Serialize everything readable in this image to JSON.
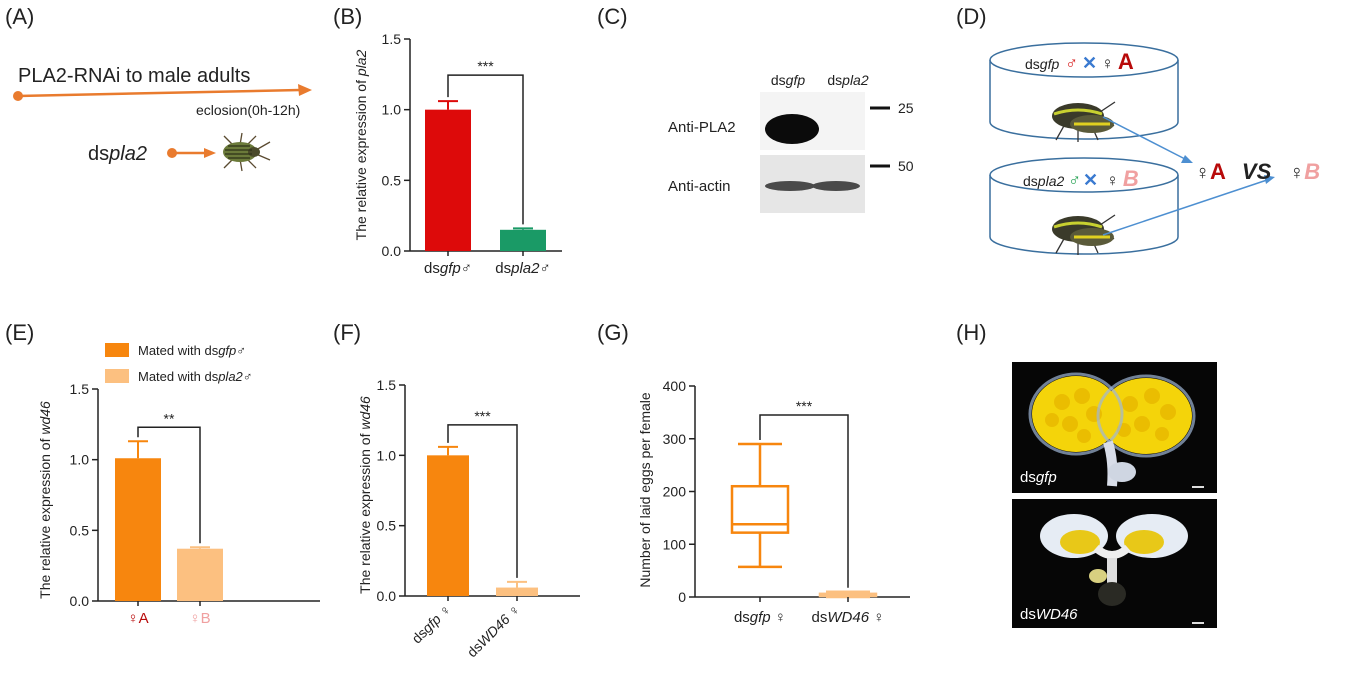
{
  "panels": {
    "A": {
      "label": "(A)",
      "arrow_text": "PLA2-RNAi to male adults",
      "eclosion_text": "eclosion(0h-12h)",
      "ds_prefix": "ds",
      "ds_gene": "pla2"
    },
    "B": {
      "label": "(B)"
    },
    "C": {
      "label": "(C)",
      "lane1_prefix": "ds",
      "lane1_gene": "gfp",
      "lane2_prefix": "ds",
      "lane2_gene": "pla2",
      "row1_label": "Anti-PLA2",
      "row2_label": "Anti-actin",
      "marker1": "25",
      "marker2": "50"
    },
    "D": {
      "label": "(D)",
      "cup1_prefix": "ds",
      "cup1_gene": "gfp",
      "cup1_male": "♂",
      "cup1_cross": "✕",
      "cup1_female": "♀",
      "cup1_letter": "A",
      "cup2_prefix": "ds",
      "cup2_gene": "pla2",
      "cup2_male": "♂",
      "cup2_cross": "✕",
      "cup2_female": "♀",
      "cup2_letter": "B",
      "cmp_female_a": "♀",
      "cmp_letter_a": "A",
      "cmp_vs": "VS",
      "cmp_female_b": "♀",
      "cmp_letter_b": "B"
    },
    "E": {
      "label": "(E)",
      "legend1_prefix": "Mated with ds",
      "legend1_gene": "gfp",
      "legend1_sym": "♂",
      "legend2_prefix": "Mated with ds",
      "legend2_gene": "pla2",
      "legend2_sym": "♂"
    },
    "F": {
      "label": "(F)"
    },
    "G": {
      "label": "(G)"
    },
    "H": {
      "label": "(H)",
      "img1_prefix": "ds",
      "img1_gene": "gfp",
      "img2_prefix": "ds",
      "img2_gene": "WD46"
    }
  },
  "colors": {
    "red": "#dd0a0a",
    "green": "#1a9a66",
    "orange": "#f7860e",
    "light_orange": "#fcc080",
    "dark_red": "#b80a0a",
    "pink": "#f0a0a0",
    "arrow": "#e97b2e",
    "blue_arrow": "#4d8fd1"
  },
  "chart_data": [
    {
      "panel": "B",
      "type": "bar",
      "ylabel_prefix": "The relative expression of ",
      "ylabel_gene": "pla2",
      "ylim": [
        0,
        1.5
      ],
      "yticks": [
        "0.0",
        "0.5",
        "1.0",
        "1.5"
      ],
      "categories": [
        {
          "prefix": "ds",
          "gene": "gfp",
          "suffix": "♂"
        },
        {
          "prefix": "ds",
          "gene": "pla2",
          "suffix": "♂"
        }
      ],
      "values": [
        1.0,
        0.15
      ],
      "errors": [
        0.06,
        0.01
      ],
      "colors": [
        "#dd0a0a",
        "#1a9a66"
      ],
      "significance": "***"
    },
    {
      "panel": "E",
      "type": "bar",
      "ylabel_prefix": "The relative expression of ",
      "ylabel_gene": "wd46",
      "ylim": [
        0,
        1.5
      ],
      "yticks": [
        "0.0",
        "0.5",
        "1.0",
        "1.5"
      ],
      "categories": [
        {
          "prefix": "",
          "gene": "",
          "suffix": "♀A"
        },
        {
          "prefix": "",
          "gene": "",
          "suffix": "♀B"
        }
      ],
      "category_colors": [
        "#b80a0a",
        "#f0a0a0"
      ],
      "values": [
        1.01,
        0.37
      ],
      "errors": [
        0.12,
        0.01
      ],
      "colors": [
        "#f7860e",
        "#fcc080"
      ],
      "significance": "**"
    },
    {
      "panel": "F",
      "type": "bar",
      "ylabel_prefix": "The relative expression of ",
      "ylabel_gene": "wd46",
      "ylim": [
        0,
        1.5
      ],
      "yticks": [
        "0.0",
        "0.5",
        "1.0",
        "1.5"
      ],
      "categories": [
        {
          "prefix": "ds",
          "gene": "gfp",
          "suffix": " ♀"
        },
        {
          "prefix": "ds",
          "gene": "WD46",
          "suffix": " ♀"
        }
      ],
      "values": [
        1.0,
        0.06
      ],
      "errors": [
        0.06,
        0.04
      ],
      "colors": [
        "#f7860e",
        "#fcc080"
      ],
      "significance": "***",
      "rotated_labels": true
    },
    {
      "panel": "G",
      "type": "box",
      "ylabel": "Number of laid eggs per female",
      "ylim": [
        0,
        400
      ],
      "yticks": [
        "0",
        "100",
        "200",
        "300",
        "400"
      ],
      "categories": [
        {
          "prefix": "ds",
          "gene": "gfp",
          "suffix": " ♀"
        },
        {
          "prefix": "ds",
          "gene": "WD46",
          "suffix": " ♀"
        }
      ],
      "boxes": [
        {
          "min": 57,
          "q1": 122,
          "median": 138,
          "q3": 210,
          "max": 290
        },
        {
          "min": 0,
          "q1": 2,
          "median": 4,
          "q3": 6,
          "max": 10
        }
      ],
      "colors": [
        "#f7860e",
        "#fcc080"
      ],
      "significance": "***"
    }
  ]
}
